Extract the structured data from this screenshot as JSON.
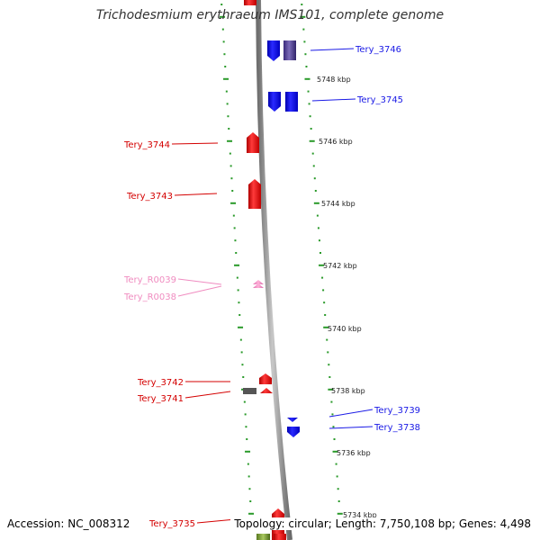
{
  "title": "Trichodesmium erythraeum IMS101, complete genome",
  "footer": {
    "accession": "Accession: NC_008312",
    "summary": "Topology: circular; Length: 7,750,108 bp; Genes: 4,498"
  },
  "colors": {
    "forward_gene": "#e8141c",
    "reverse_gene": "#1a1ae6",
    "rna": "#f08cc0",
    "backbone": "#8a8a8a",
    "tick": "#2a9a2a"
  },
  "scale_labels": [
    "5748 kbp",
    "5746 kbp",
    "5744 kbp",
    "5742 kbp",
    "5740 kbp",
    "5738 kbp",
    "5736 kbp",
    "5734 kbp"
  ],
  "left_labels": [
    {
      "text": "Tery_3744",
      "kind": "forward"
    },
    {
      "text": "Tery_3743",
      "kind": "forward"
    },
    {
      "text": "Tery_R0039",
      "kind": "rna"
    },
    {
      "text": "Tery_R0038",
      "kind": "rna"
    },
    {
      "text": "Tery_3742",
      "kind": "forward"
    },
    {
      "text": "Tery_3741",
      "kind": "forward"
    },
    {
      "text": "Tery_3735",
      "kind": "forward"
    }
  ],
  "right_labels": [
    {
      "text": "Tery_3746",
      "kind": "reverse"
    },
    {
      "text": "Tery_3745",
      "kind": "reverse"
    },
    {
      "text": "Tery_3739",
      "kind": "reverse"
    },
    {
      "text": "Tery_3738",
      "kind": "reverse"
    }
  ]
}
